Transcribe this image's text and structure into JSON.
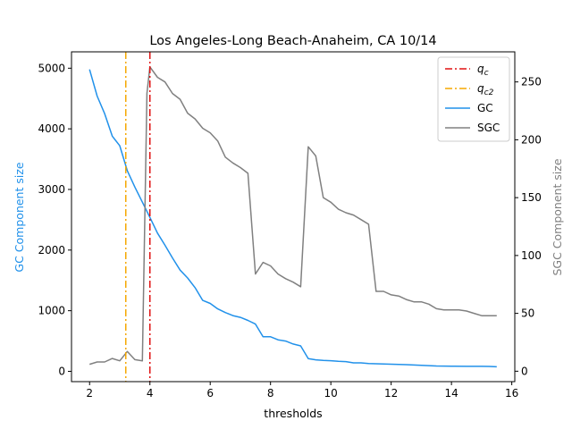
{
  "chart_data": {
    "type": "line",
    "title": "Los Angeles-Long Beach-Anaheim, CA 10/14",
    "xlabel": "thresholds",
    "ylabel_left": "GC Component size",
    "ylabel_right": "SGC Component size",
    "xlim": [
      1.4,
      16.1
    ],
    "ylim_left": [
      -170,
      5270
    ],
    "ylim_right": [
      -9,
      276
    ],
    "x_ticks": [
      2,
      4,
      6,
      8,
      10,
      12,
      14,
      16
    ],
    "y_ticks_left": [
      0,
      1000,
      2000,
      3000,
      4000,
      5000
    ],
    "y_ticks_right": [
      0,
      50,
      100,
      150,
      200,
      250
    ],
    "legend_position": "top-right",
    "grid": false,
    "vlines": [
      {
        "name": "q_c",
        "label_main": "q",
        "label_sub": "c",
        "x": 4.0,
        "color": "#e01010",
        "style": "dashdot"
      },
      {
        "name": "q_c2",
        "label_main": "q",
        "label_sub": "c2",
        "x": 3.2,
        "color": "#f5a800",
        "style": "dashdot"
      }
    ],
    "series": [
      {
        "name": "GC",
        "axis": "left",
        "color": "#2191ea",
        "x": [
          2.0,
          2.25,
          2.5,
          2.75,
          3.0,
          3.25,
          3.5,
          3.75,
          4.0,
          4.25,
          4.5,
          4.75,
          5.0,
          5.25,
          5.5,
          5.75,
          6.0,
          6.25,
          6.5,
          6.75,
          7.0,
          7.25,
          7.5,
          7.75,
          8.0,
          8.25,
          8.5,
          8.75,
          9.0,
          9.25,
          9.5,
          9.75,
          10.0,
          10.25,
          10.5,
          10.75,
          11.0,
          11.25,
          11.5,
          11.75,
          12.0,
          12.5,
          13.0,
          13.5,
          14.0,
          14.5,
          15.0,
          15.25,
          15.5
        ],
        "values": [
          4980,
          4540,
          4250,
          3880,
          3720,
          3310,
          3040,
          2790,
          2540,
          2280,
          2080,
          1870,
          1670,
          1540,
          1380,
          1170,
          1120,
          1030,
          970,
          920,
          890,
          840,
          780,
          570,
          570,
          520,
          500,
          450,
          420,
          210,
          190,
          180,
          175,
          165,
          160,
          140,
          140,
          130,
          125,
          120,
          118,
          110,
          100,
          88,
          85,
          82,
          82,
          80,
          75
        ]
      },
      {
        "name": "SGC",
        "axis": "right",
        "color": "#808080",
        "x": [
          2.0,
          2.25,
          2.5,
          2.75,
          3.0,
          3.25,
          3.5,
          3.75,
          3.9,
          4.0,
          4.25,
          4.5,
          4.75,
          5.0,
          5.25,
          5.5,
          5.75,
          6.0,
          6.25,
          6.5,
          6.75,
          7.0,
          7.25,
          7.5,
          7.75,
          8.0,
          8.25,
          8.5,
          8.75,
          9.0,
          9.25,
          9.5,
          9.75,
          10.0,
          10.25,
          10.5,
          10.75,
          11.0,
          11.25,
          11.5,
          11.75,
          12.0,
          12.25,
          12.5,
          12.75,
          13.0,
          13.25,
          13.5,
          13.75,
          14.0,
          14.25,
          14.5,
          14.75,
          15.0,
          15.25,
          15.5
        ],
        "values": [
          6,
          8,
          8,
          11,
          9,
          17,
          10,
          9,
          240,
          263,
          254,
          250,
          240,
          235,
          223,
          218,
          210,
          206,
          199,
          185,
          180,
          176,
          171,
          84,
          94,
          91,
          84,
          80,
          77,
          73,
          194,
          186,
          150,
          146,
          140,
          137,
          135,
          131,
          127,
          69,
          69,
          66,
          65,
          62,
          60,
          60,
          58,
          54,
          53,
          53,
          53,
          52,
          50,
          48,
          48,
          48
        ]
      }
    ]
  }
}
